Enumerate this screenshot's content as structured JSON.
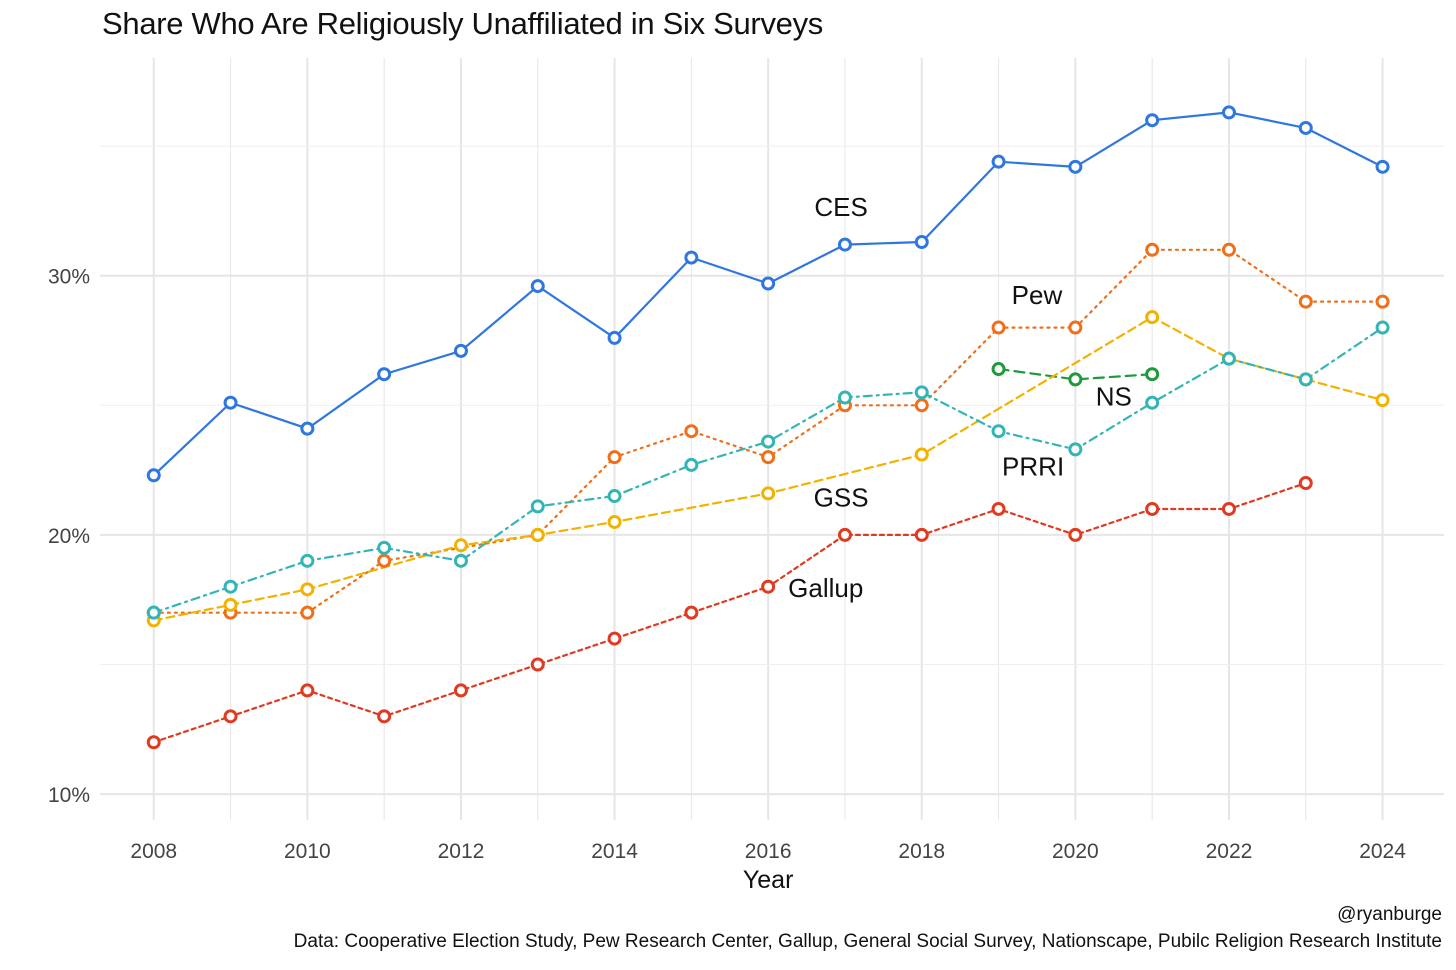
{
  "chart_data": {
    "type": "line",
    "title": "Share Who Are Religiously Unaffiliated in Six Surveys",
    "xlabel": "Year",
    "ylabel": "",
    "xlim": [
      2007.3,
      2024.8
    ],
    "ylim": [
      9,
      38.4
    ],
    "x_ticks": [
      2008,
      2010,
      2012,
      2014,
      2016,
      2018,
      2020,
      2022,
      2024
    ],
    "y_ticks": [
      10,
      20,
      30
    ],
    "y_tick_labels": [
      "10%",
      "20%",
      "30%"
    ],
    "grid": true,
    "legend": "none (direct labels)",
    "series": [
      {
        "name": "CES",
        "color": "#2f77e0",
        "dash": "solid",
        "label_at": [
          2016.95,
          32.3
        ],
        "points": [
          [
            2008,
            22.3
          ],
          [
            2009,
            25.1
          ],
          [
            2010,
            24.1
          ],
          [
            2011,
            26.2
          ],
          [
            2012,
            27.1
          ],
          [
            2013,
            29.6
          ],
          [
            2014,
            27.6
          ],
          [
            2015,
            30.7
          ],
          [
            2016,
            29.7
          ],
          [
            2017,
            31.2
          ],
          [
            2018,
            31.3
          ],
          [
            2019,
            34.4
          ],
          [
            2020,
            34.2
          ],
          [
            2021,
            36.0
          ],
          [
            2022,
            36.3
          ],
          [
            2023,
            35.7
          ],
          [
            2024,
            34.2
          ]
        ]
      },
      {
        "name": "Pew",
        "color": "#ef6f1a",
        "dash": "dotted",
        "label_at": [
          2019.5,
          28.9
        ],
        "points": [
          [
            2008,
            17
          ],
          [
            2009,
            17
          ],
          [
            2010,
            17
          ],
          [
            2011,
            19
          ],
          [
            2013,
            20
          ],
          [
            2014,
            23
          ],
          [
            2015,
            24
          ],
          [
            2016,
            23
          ],
          [
            2017,
            25
          ],
          [
            2018,
            25
          ],
          [
            2019,
            28
          ],
          [
            2020,
            28
          ],
          [
            2021,
            31
          ],
          [
            2022,
            31
          ],
          [
            2023,
            29
          ],
          [
            2024,
            29
          ]
        ]
      },
      {
        "name": "NS",
        "color": "#1f9a3a",
        "dash": "longdash",
        "label_at": [
          2020.5,
          25.0
        ],
        "points": [
          [
            2019,
            26.4
          ],
          [
            2020,
            26.0
          ],
          [
            2021,
            26.2
          ]
        ]
      },
      {
        "name": "PRRI",
        "color": "#f2b200",
        "dash": "dashed",
        "label_at": [
          2019.45,
          22.3
        ],
        "points": [
          [
            2008,
            16.7
          ],
          [
            2009,
            17.3
          ],
          [
            2010,
            17.9
          ],
          [
            2012,
            19.6
          ],
          [
            2013,
            20.0
          ],
          [
            2014,
            20.5
          ],
          [
            2016,
            21.6
          ],
          [
            2018,
            23.1
          ],
          [
            2021,
            28.4
          ],
          [
            2022,
            26.8
          ],
          [
            2023,
            26.0
          ],
          [
            2024,
            25.2
          ]
        ]
      },
      {
        "name": "GSS",
        "color": "#34b5b5",
        "dash": "dotdash",
        "label_at": [
          2016.95,
          21.1
        ],
        "points": [
          [
            2008,
            17
          ],
          [
            2009,
            18
          ],
          [
            2010,
            19
          ],
          [
            2011,
            19.5
          ],
          [
            2012,
            19
          ],
          [
            2013,
            21.1
          ],
          [
            2014,
            21.5
          ],
          [
            2015,
            22.7
          ],
          [
            2016,
            23.6
          ],
          [
            2017,
            25.3
          ],
          [
            2018,
            25.5
          ],
          [
            2019,
            24.0
          ],
          [
            2020,
            23.3
          ],
          [
            2021,
            25.1
          ],
          [
            2022,
            26.8
          ],
          [
            2023,
            26.0
          ],
          [
            2024,
            28.0
          ]
        ]
      },
      {
        "name": "Gallup",
        "color": "#e03a20",
        "dash": "shortdash",
        "label_at": [
          2016.75,
          17.6
        ],
        "points": [
          [
            2008,
            12
          ],
          [
            2009,
            13
          ],
          [
            2010,
            14
          ],
          [
            2011,
            13
          ],
          [
            2012,
            14
          ],
          [
            2013,
            15
          ],
          [
            2014,
            16
          ],
          [
            2015,
            17
          ],
          [
            2016,
            18
          ],
          [
            2017,
            20
          ],
          [
            2018,
            20
          ],
          [
            2019,
            21
          ],
          [
            2020,
            20
          ],
          [
            2021,
            21
          ],
          [
            2022,
            21
          ],
          [
            2023,
            22
          ]
        ]
      }
    ]
  },
  "caption": {
    "handle": "@ryanburge",
    "source": "Data: Cooperative Election Study, Pew Research Center, Gallup, General Social Survey, Nationscape, Pubilc Religion Research Institute"
  }
}
